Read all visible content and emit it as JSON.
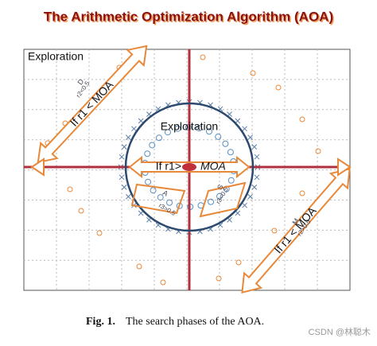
{
  "header": {
    "title": "The Arithmetic Optimization Algorithm (AOA)"
  },
  "diagram": {
    "exploration": "Exploration",
    "exploitation": "Exploitation",
    "arrow_top_left": "If r1 < MOA",
    "arrow_bottom_right": "If r1 < MOA",
    "center_left": "If r1>",
    "center_right": "MOA",
    "labels": {
      "d": "D",
      "d_cond": "r2<0.5",
      "a": "A",
      "a_cond": "r3>0.5",
      "s": "S",
      "s_cond": "r3<0.5",
      "m": "M",
      "m_cond": "r2>0.5"
    }
  },
  "caption": {
    "label": "Fig. 1.",
    "text": "The search phases of the AOA."
  },
  "watermark": "CSDN @林聪木"
}
